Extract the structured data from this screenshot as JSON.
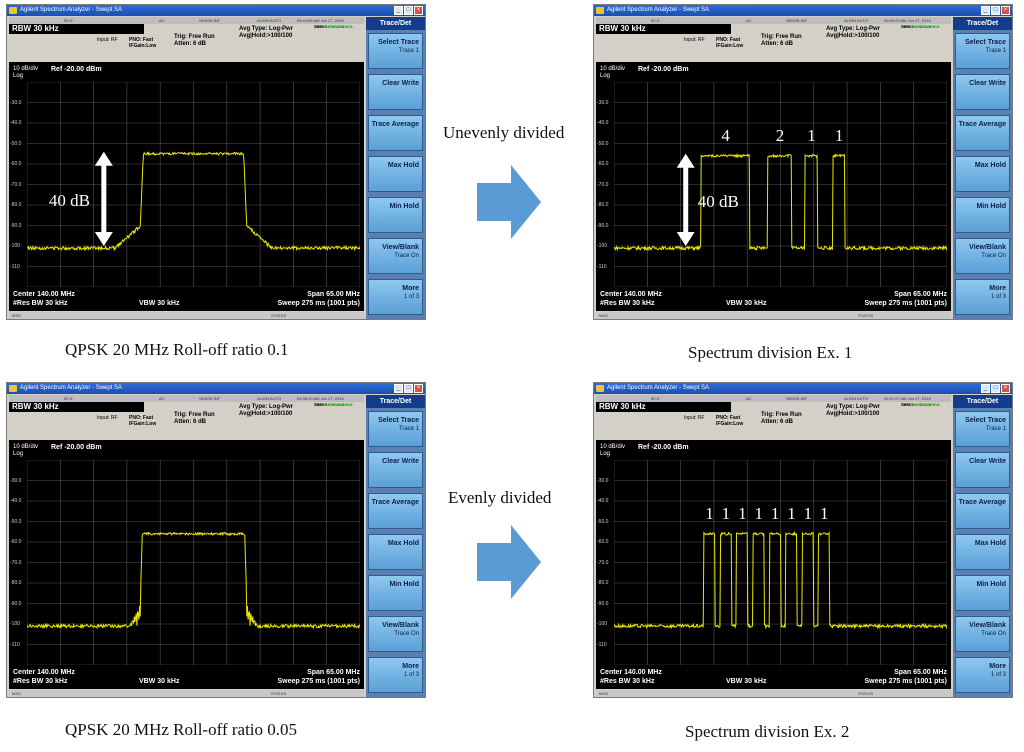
{
  "common": {
    "title_bar": "Agilent Spectrum Analyzer - Swept SA",
    "status_items": [
      "50 Ω",
      "AC",
      "SENSE:INT",
      "ALIGN AUTO"
    ],
    "rbw": "RBW  30 kHz",
    "input": "Input: RF",
    "pno": "PNO: Fast",
    "ifgain": "IFGain:Low",
    "trig": "Trig: Free Run",
    "atten": "Atten: 6 dB",
    "avg_type": "Avg Type: Log-Pwr",
    "avg_hold": "Avg|Hold:>100/100",
    "trace_lbl": "TRACE",
    "type_lbl": "TYPE",
    "det_lbl": "DET",
    "trace_vals": "1 2 3 4 5 6",
    "type_vals": "M WWWWW",
    "det_vals": "P NNNNN",
    "scale": "10 dB/div",
    "log": "Log",
    "ref": "Ref -20.00 dBm",
    "y_ticks": [
      "-30.0",
      "-40.0",
      "-50.0",
      "-60.0",
      "-70.0",
      "-80.0",
      "-90.0",
      "-100",
      "-110"
    ],
    "center": "Center 140.00 MHz",
    "res_bw": "#Res BW 30 kHz",
    "vbw": "VBW 30 kHz",
    "span": "Span 65.00 MHz",
    "sweep": "Sweep  275 ms (1001 pts)",
    "msg": "MSG",
    "status": "STATUS",
    "softkey_title": "Trace/Det",
    "softkeys": [
      {
        "label": "Select Trace",
        "sub": "Trace 1"
      },
      {
        "label": "Clear Write",
        "sub": ""
      },
      {
        "label": "Trace Average",
        "sub": ""
      },
      {
        "label": "Max Hold",
        "sub": ""
      },
      {
        "label": "Min Hold",
        "sub": ""
      },
      {
        "label": "View/Blank",
        "sub": "Trace On"
      },
      {
        "label": "More",
        "sub": "1 of 3"
      }
    ],
    "trace_color": "#e8e800",
    "accent": "#5b9bd5"
  },
  "panels": [
    {
      "timestamp": "09:44:55 AM Jun 27, 2016",
      "caption": "QPSK 20 MHz Roll-off ratio 0.1",
      "dynamic_range_label": "40 dB",
      "segment_labels": [],
      "chart_data": {
        "type": "line",
        "ylim": [
          -120,
          -20
        ],
        "x_center_mhz": 140.0,
        "x_span_mhz": 65.0,
        "trace": {
          "kind": "single",
          "floor": -101,
          "top": -55,
          "x_start_mhz": 130.2,
          "x_end_mhz": 149.8,
          "skirt": "moderate"
        }
      }
    },
    {
      "timestamp": "09:50:23 AM Jun 27, 2016",
      "caption": "Spectrum division Ex. 1",
      "side_label": "Unevenly divided",
      "dynamic_range_label": "40 dB",
      "segment_labels": [
        "4",
        "2",
        "1",
        "1"
      ],
      "chart_data": {
        "type": "line",
        "ylim": [
          -120,
          -20
        ],
        "x_center_mhz": 140.0,
        "x_span_mhz": 65.0,
        "trace": {
          "kind": "segments",
          "floor": -101,
          "top": -56,
          "segments": [
            [
              124.5,
              134.0
            ],
            [
              137.5,
              142.2
            ],
            [
              144.8,
              147.2
            ],
            [
              150.2,
              152.6
            ]
          ]
        }
      }
    },
    {
      "timestamp": "09:36:10 AM Jun 27, 2016",
      "caption": "QPSK 20 MHz Roll-off ratio 0.05",
      "dynamic_range_label": "",
      "segment_labels": [],
      "chart_data": {
        "type": "line",
        "ylim": [
          -120,
          -20
        ],
        "x_center_mhz": 140.0,
        "x_span_mhz": 65.0,
        "trace": {
          "kind": "single",
          "floor": -101,
          "top": -56,
          "x_start_mhz": 130.0,
          "x_end_mhz": 150.0,
          "skirt": "ripple"
        }
      }
    },
    {
      "timestamp": "09:37:27 AM Jun 27, 2016",
      "caption": "Spectrum division Ex. 2",
      "side_label": "Evenly divided",
      "dynamic_range_label": "",
      "segment_labels": [
        "1",
        "1",
        "1",
        "1",
        "1",
        "1",
        "1",
        "1"
      ],
      "chart_data": {
        "type": "line",
        "ylim": [
          -120,
          -20
        ],
        "x_center_mhz": 140.0,
        "x_span_mhz": 65.0,
        "trace": {
          "kind": "segments",
          "floor": -101,
          "top": -56,
          "segments": [
            [
              125.0,
              127.2
            ],
            [
              128.2,
              130.4
            ],
            [
              131.4,
              133.6
            ],
            [
              134.6,
              136.8
            ],
            [
              137.8,
              140.0
            ],
            [
              141.0,
              143.2
            ],
            [
              144.2,
              146.4
            ],
            [
              147.4,
              149.6
            ]
          ]
        }
      }
    }
  ]
}
